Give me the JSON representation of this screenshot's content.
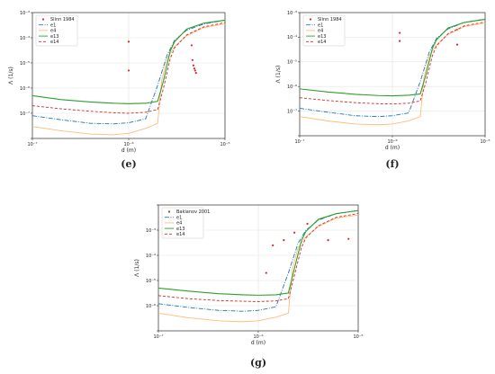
{
  "chart_data": [
    {
      "panel_label": "(e)",
      "type": "line",
      "xlabel": "d (m)",
      "ylabel": "Λ (1/s)",
      "xscale": "log",
      "yscale": "log",
      "xlim": [
        1e-07,
        1e-05
      ],
      "ylim": [
        1e-07,
        0.01
      ],
      "xticks": [
        "10⁻⁷",
        "10⁻⁶",
        "10⁻⁵"
      ],
      "yticks": [
        "10⁻⁷",
        "10⁻⁶",
        "10⁻⁵",
        "10⁻⁴",
        "10⁻³"
      ],
      "grid": true,
      "legend_position": "top-left",
      "series": [
        {
          "name": "Slinn 1984",
          "kind": "points",
          "color": "#d62728",
          "x": [
            1e-06,
            1e-06,
            4.5e-06,
            4.6e-06,
            4.7e-06,
            4.8e-06,
            4.9e-06,
            5e-06
          ],
          "y": [
            0.0007,
            5e-05,
            0.0005,
            0.00013,
            8e-05,
            6e-05,
            5e-05,
            4e-05
          ]
        },
        {
          "name": "e1",
          "kind": "line",
          "style": "dashdot",
          "color": "#1f77b4",
          "x": [
            1e-07,
            2e-07,
            4e-07,
            7e-07,
            1e-06,
            1.5e-06,
            2e-06,
            2.5e-06,
            3e-06,
            4e-06,
            6e-06,
            1e-05
          ],
          "y": [
            8e-07,
            5.5e-07,
            4e-07,
            3.8e-07,
            4.2e-07,
            6e-07,
            1.3e-05,
            0.0002,
            0.0008,
            0.002,
            0.0035,
            0.005
          ]
        },
        {
          "name": "e4",
          "kind": "line",
          "style": "solid",
          "color": "#ffbb78",
          "x": [
            1e-07,
            2e-07,
            4e-07,
            7e-07,
            1e-06,
            1.5e-06,
            2e-06,
            2.2e-06,
            2.5e-06,
            3e-06,
            4e-06,
            6e-06,
            1e-05
          ],
          "y": [
            3e-07,
            2e-07,
            1.5e-07,
            1.4e-07,
            1.6e-07,
            2.5e-07,
            4e-07,
            2e-05,
            0.00015,
            0.00045,
            0.0012,
            0.0025,
            0.0036
          ]
        },
        {
          "name": "e13",
          "kind": "line",
          "style": "solid",
          "color": "#2ca02c",
          "x": [
            1e-07,
            2e-07,
            4e-07,
            7e-07,
            1e-06,
            1.5e-06,
            2e-06,
            2.3e-06,
            2.7e-06,
            3e-06,
            4e-06,
            6e-06,
            1e-05
          ],
          "y": [
            5e-06,
            3.5e-06,
            2.8e-06,
            2.5e-06,
            2.4e-06,
            2.5e-06,
            3e-06,
            2e-05,
            0.0003,
            0.0007,
            0.0022,
            0.0038,
            0.005
          ]
        },
        {
          "name": "e14",
          "kind": "line",
          "style": "dashed",
          "color": "#d62728",
          "x": [
            1e-07,
            2e-07,
            4e-07,
            7e-07,
            1e-06,
            1.5e-06,
            2e-06,
            2.3e-06,
            2.7e-06,
            3e-06,
            4e-06,
            6e-06,
            1e-05
          ],
          "y": [
            2e-06,
            1.5e-06,
            1.2e-06,
            1.05e-06,
            1e-06,
            1.1e-06,
            1.4e-06,
            1e-05,
            0.00015,
            0.0004,
            0.0013,
            0.0027,
            0.004
          ]
        }
      ]
    },
    {
      "panel_label": "(f)",
      "type": "line",
      "xlabel": "d (m)",
      "ylabel": "Λ (1/s)",
      "xscale": "log",
      "yscale": "log",
      "xlim": [
        1e-07,
        1e-05
      ],
      "ylim": [
        1e-07,
        0.01
      ],
      "xticks": [
        "10⁻⁷",
        "10⁻⁶",
        "10⁻⁵"
      ],
      "yticks": [
        "10⁻⁷",
        "10⁻⁶",
        "10⁻⁵",
        "10⁻⁴",
        "10⁻³"
      ],
      "grid": true,
      "legend_position": "top-left",
      "series": [
        {
          "name": "Slinn 1984",
          "kind": "points",
          "color": "#d62728",
          "x": [
            1.2e-06,
            1.2e-06,
            5e-06,
            5e-06
          ],
          "y": [
            0.0015,
            0.0007,
            0.002,
            0.0005
          ]
        },
        {
          "name": "e1",
          "kind": "line",
          "style": "dashdot",
          "color": "#1f77b4",
          "x": [
            1e-07,
            2e-07,
            4e-07,
            7e-07,
            1e-06,
            1.5e-06,
            2e-06,
            2.5e-06,
            3e-06,
            4e-06,
            6e-06,
            1e-05
          ],
          "y": [
            1.3e-06,
            9e-07,
            6.5e-07,
            6e-07,
            6.5e-07,
            8.5e-07,
            1.6e-05,
            0.00025,
            0.0009,
            0.0022,
            0.004,
            0.0055
          ]
        },
        {
          "name": "e4",
          "kind": "line",
          "style": "solid",
          "color": "#ffbb78",
          "x": [
            1e-07,
            2e-07,
            4e-07,
            7e-07,
            1e-06,
            1.5e-06,
            2e-06,
            2.2e-06,
            2.5e-06,
            3e-06,
            4e-06,
            6e-06,
            1e-05
          ],
          "y": [
            6e-07,
            4e-07,
            3e-07,
            2.8e-07,
            3e-07,
            4e-07,
            6e-07,
            2.5e-05,
            0.00018,
            0.0005,
            0.0013,
            0.0027,
            0.0038
          ]
        },
        {
          "name": "e13",
          "kind": "line",
          "style": "solid",
          "color": "#2ca02c",
          "x": [
            1e-07,
            2e-07,
            4e-07,
            7e-07,
            1e-06,
            1.5e-06,
            2e-06,
            2.3e-06,
            2.7e-06,
            3e-06,
            4e-06,
            6e-06,
            1e-05
          ],
          "y": [
            8e-06,
            6e-06,
            4.8e-06,
            4.3e-06,
            4.2e-06,
            4.4e-06,
            5e-06,
            3e-05,
            0.00035,
            0.0008,
            0.0024,
            0.004,
            0.0053
          ]
        },
        {
          "name": "e14",
          "kind": "line",
          "style": "dashed",
          "color": "#d62728",
          "x": [
            1e-07,
            2e-07,
            4e-07,
            7e-07,
            1e-06,
            1.5e-06,
            2e-06,
            2.3e-06,
            2.7e-06,
            3e-06,
            4e-06,
            6e-06,
            1e-05
          ],
          "y": [
            3.5e-06,
            2.7e-06,
            2.2e-06,
            2e-06,
            1.95e-06,
            2.1e-06,
            2.6e-06,
            1.5e-05,
            0.00018,
            0.00045,
            0.0014,
            0.0029,
            0.0042
          ]
        }
      ]
    },
    {
      "panel_label": "(g)",
      "type": "line",
      "xlabel": "d (m)",
      "ylabel": "Λ (1/s)",
      "xscale": "log",
      "yscale": "log",
      "xlim": [
        1e-07,
        1e-05
      ],
      "ylim": [
        1e-07,
        0.01
      ],
      "xticks": [
        "10⁻⁷",
        "10⁻⁶",
        "10⁻⁵"
      ],
      "yticks": [
        "10⁻⁶",
        "10⁻⁵",
        "10⁻⁴",
        "10⁻³"
      ],
      "grid": true,
      "legend_position": "top-left",
      "series": [
        {
          "name": "Baklanov 2001",
          "kind": "points",
          "color": "#d62728",
          "x": [
            1.2e-06,
            1.4e-06,
            1.8e-06,
            2.3e-06,
            3.1e-06,
            5e-06,
            8e-06
          ],
          "y": [
            2e-05,
            0.00025,
            0.0004,
            0.0008,
            0.0018,
            0.0004,
            0.00045
          ]
        },
        {
          "name": "e1",
          "kind": "line",
          "style": "dashdot",
          "color": "#1f77b4",
          "x": [
            1e-07,
            2e-07,
            4e-07,
            7e-07,
            1e-06,
            1.5e-06,
            2e-06,
            2.5e-06,
            3e-06,
            4e-06,
            6e-06,
            1e-05
          ],
          "y": [
            1.2e-06,
            8.5e-07,
            6.5e-07,
            6e-07,
            6.5e-07,
            9e-07,
            2e-05,
            0.0003,
            0.001,
            0.0025,
            0.0045,
            0.006
          ]
        },
        {
          "name": "e4",
          "kind": "line",
          "style": "solid",
          "color": "#ffbb78",
          "x": [
            1e-07,
            2e-07,
            4e-07,
            7e-07,
            1e-06,
            1.5e-06,
            2e-06,
            2.2e-06,
            2.5e-06,
            3e-06,
            4e-06,
            6e-06,
            1e-05
          ],
          "y": [
            5e-07,
            3.3e-07,
            2.5e-07,
            2.3e-07,
            2.5e-07,
            3.5e-07,
            5e-07,
            3e-05,
            0.0002,
            0.00055,
            0.0014,
            0.003,
            0.004
          ]
        },
        {
          "name": "e13",
          "kind": "line",
          "style": "solid",
          "color": "#2ca02c",
          "x": [
            1e-07,
            2e-07,
            4e-07,
            7e-07,
            1e-06,
            1.5e-06,
            2e-06,
            2.3e-06,
            2.7e-06,
            3e-06,
            4e-06,
            6e-06,
            1e-05
          ],
          "y": [
            5e-06,
            3.8e-06,
            3e-06,
            2.7e-06,
            2.6e-06,
            2.7e-06,
            3.2e-06,
            3e-05,
            0.00038,
            0.0009,
            0.0027,
            0.0045,
            0.006
          ]
        },
        {
          "name": "e14",
          "kind": "line",
          "style": "dashed",
          "color": "#d62728",
          "x": [
            1e-07,
            2e-07,
            4e-07,
            7e-07,
            1e-06,
            1.5e-06,
            2e-06,
            2.3e-06,
            2.7e-06,
            3e-06,
            4e-06,
            6e-06,
            1e-05
          ],
          "y": [
            2.5e-06,
            1.9e-06,
            1.6e-06,
            1.5e-06,
            1.45e-06,
            1.55e-06,
            1.9e-06,
            1.6e-05,
            0.0002,
            0.0005,
            0.0015,
            0.0032,
            0.0046
          ]
        }
      ]
    }
  ]
}
